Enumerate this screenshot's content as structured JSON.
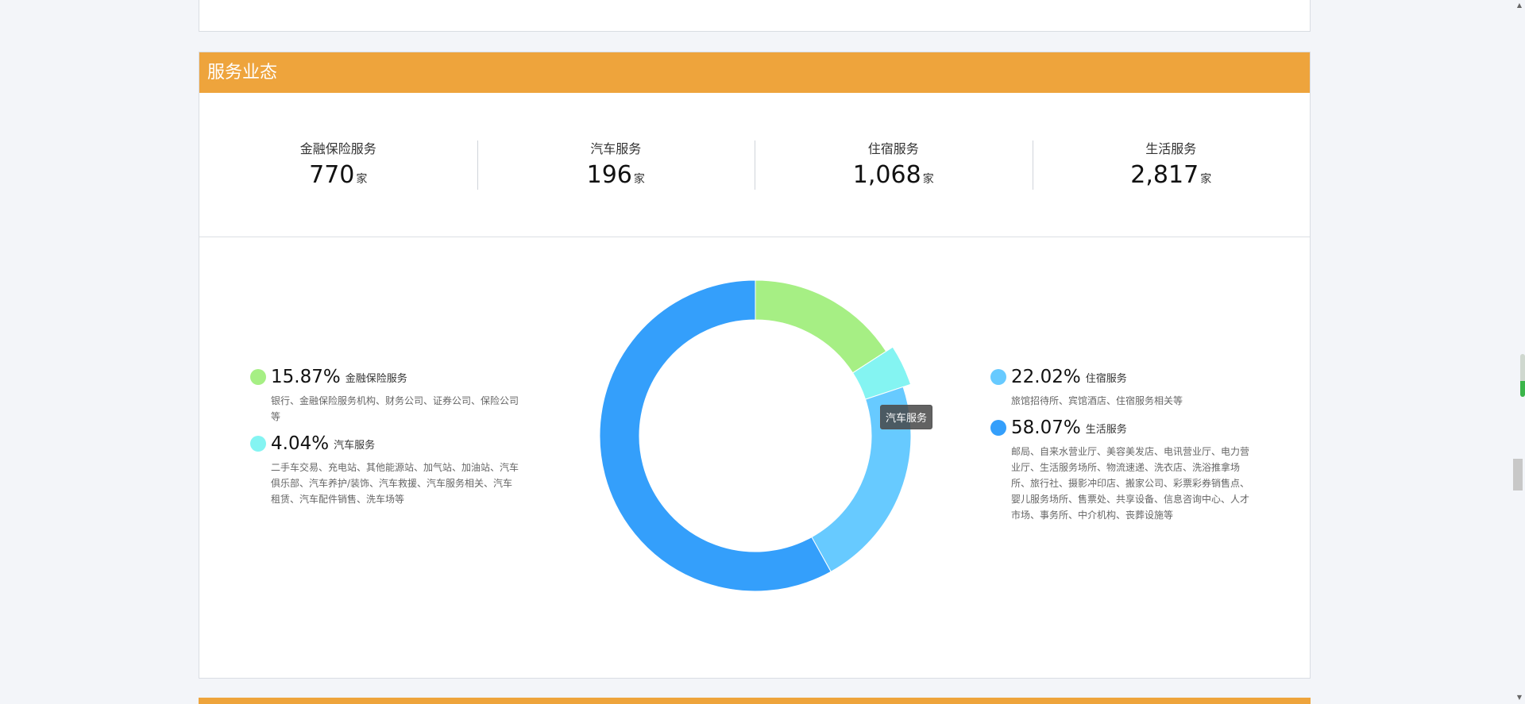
{
  "section": {
    "title": "服务业态"
  },
  "stats": [
    {
      "label": "金融保险服务",
      "value": "770",
      "unit": "家"
    },
    {
      "label": "汽车服务",
      "value": "196",
      "unit": "家"
    },
    {
      "label": "住宿服务",
      "value": "1,068",
      "unit": "家"
    },
    {
      "label": "生活服务",
      "value": "2,817",
      "unit": "家"
    }
  ],
  "legend_left": [
    {
      "pct": "15.87%",
      "name": "金融保险服务",
      "desc": "银行、金融保险服务机构、财务公司、证券公司、保险公司等",
      "color": "#a6ef84"
    },
    {
      "pct": "4.04%",
      "name": "汽车服务",
      "desc": "二手车交易、充电站、其他能源站、加气站、加油站、汽车俱乐部、汽车养护/装饰、汽车救援、汽车服务相关、汽车租赁、汽车配件销售、洗车场等",
      "color": "#84f4f2"
    }
  ],
  "legend_right": [
    {
      "pct": "22.02%",
      "name": "住宿服务",
      "desc": "旅馆招待所、宾馆酒店、住宿服务相关等",
      "color": "#67caff"
    },
    {
      "pct": "58.07%",
      "name": "生活服务",
      "desc": "邮局、自来水营业厅、美容美发店、电讯营业厅、电力营业厅、生活服务场所、物流速递、洗衣店、洗浴推拿场所、旅行社、摄影冲印店、搬家公司、彩票彩券销售点、婴儿服务场所、售票处、共享设备、信息咨询中心、人才市场、事务所、中介机构、丧葬设施等",
      "color": "#349ffb"
    }
  ],
  "tooltip": "汽车服务",
  "chart_data": {
    "type": "pie",
    "categories": [
      "金融保险服务",
      "汽车服务",
      "住宿服务",
      "生活服务"
    ],
    "values": [
      770,
      196,
      1068,
      2817
    ],
    "percentages": [
      15.87,
      4.04,
      22.02,
      58.07
    ],
    "colors": [
      "#a6ef84",
      "#84f4f2",
      "#67caff",
      "#349ffb"
    ],
    "highlighted": "汽车服务",
    "donut": true
  }
}
